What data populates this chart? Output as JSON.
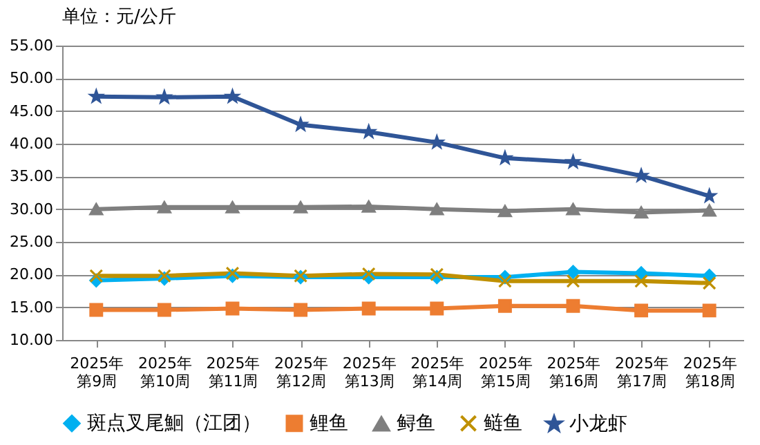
{
  "chart_data": {
    "type": "line",
    "title": "单位：元/公斤",
    "categories": [
      "2025年第9周",
      "2025年第10周",
      "2025年第11周",
      "2025年第12周",
      "2025年第13周",
      "2025年第14周",
      "2025年第15周",
      "2025年第16周",
      "2025年第17周",
      "2025年第18周"
    ],
    "series": [
      {
        "name": "斑点叉尾鮰（江团）",
        "color": "#00b0f0",
        "marker": "diamond",
        "values": [
          19.1,
          19.4,
          19.8,
          19.6,
          19.6,
          19.6,
          19.6,
          20.4,
          20.2,
          19.8
        ]
      },
      {
        "name": "鲤鱼",
        "color": "#ed7d31",
        "marker": "square",
        "values": [
          14.6,
          14.6,
          14.8,
          14.6,
          14.8,
          14.8,
          15.2,
          15.2,
          14.5,
          14.5
        ]
      },
      {
        "name": "鲟鱼",
        "color": "#7f7f7f",
        "marker": "triangle",
        "values": [
          30.0,
          30.3,
          30.3,
          30.3,
          30.4,
          30.0,
          29.7,
          30.0,
          29.5,
          29.8
        ]
      },
      {
        "name": "鲢鱼",
        "color": "#bf9000",
        "marker": "cross",
        "values": [
          19.8,
          19.8,
          20.2,
          19.8,
          20.1,
          20.0,
          19.0,
          19.0,
          19.0,
          18.7
        ]
      },
      {
        "name": "小龙虾",
        "color": "#2f5597",
        "marker": "star",
        "values": [
          47.2,
          47.1,
          47.2,
          42.9,
          41.8,
          40.2,
          37.8,
          37.2,
          35.1,
          32.0
        ]
      }
    ],
    "ylim": [
      10,
      55
    ],
    "yticks": [
      {
        "value": 10,
        "label": "10.00"
      },
      {
        "value": 15,
        "label": "15.00"
      },
      {
        "value": 20,
        "label": "20.00"
      },
      {
        "value": 25,
        "label": "25.00"
      },
      {
        "value": 30,
        "label": "30.00"
      },
      {
        "value": 35,
        "label": "35.00"
      },
      {
        "value": 40,
        "label": "40.00"
      },
      {
        "value": 45,
        "label": "45.00"
      },
      {
        "value": 50,
        "label": "50.00"
      },
      {
        "value": 55,
        "label": "55.00"
      }
    ],
    "grid": "y",
    "legend": "bottom"
  }
}
